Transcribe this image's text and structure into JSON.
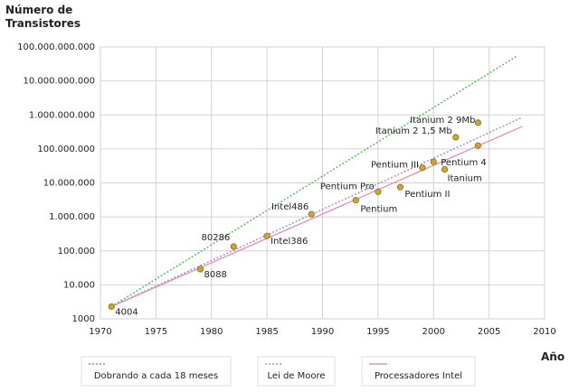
{
  "chart_data": {
    "type": "scatter",
    "ylabel": "Número de Transistores",
    "xlabel": "Año",
    "yscale": "log",
    "grid": true,
    "xlim": [
      1970,
      2010
    ],
    "xticks": [
      1970,
      1975,
      1980,
      1985,
      1990,
      1995,
      2000,
      2005,
      2010
    ],
    "ylim": [
      1000,
      100000000000
    ],
    "yticks": [
      1000,
      {
        "value": 10000,
        "label": "10.000"
      },
      {
        "value": 100000,
        "label": "100.000"
      },
      {
        "value": 1000000,
        "label": "1.000.000"
      },
      {
        "value": 10000000,
        "label": "10.000.000"
      },
      {
        "value": 100000000,
        "label": "100.000.000"
      },
      {
        "value": 1000000000,
        "label": "1.000.000.000"
      },
      {
        "value": 10000000000,
        "label": "10.000.000.000"
      },
      {
        "value": 100000000000,
        "label": "100.000.000.000"
      }
    ],
    "points": {
      "color": "#c9a53a",
      "x": [
        1971,
        1979,
        1982,
        1985,
        1989,
        1993,
        1995,
        1997,
        1999,
        2000,
        2001,
        2002,
        2004,
        2004
      ],
      "values": [
        2300,
        29000,
        134000,
        275000,
        1200000,
        3100000,
        5500000,
        7500000,
        28000000,
        42000000,
        25000000,
        220000000,
        592000000,
        125000000
      ],
      "labels": [
        "4004",
        "8088",
        "80286",
        "Intel386",
        "Intel486",
        "Pentium",
        "Pentium Pro",
        "Pentium II",
        "Pentium III",
        "Pentium 4",
        "Itanium",
        "Itanium 2 1,5 Mb",
        "Itanium 2 9Mb",
        null
      ]
    },
    "series": [
      {
        "name": "Dobrando a cada 18 meses",
        "color": "#5cb85c",
        "style": "dotted",
        "x": [
          1971,
          2007.5
        ],
        "values": [
          2300,
          54000000000
        ]
      },
      {
        "name": "Lei de Moore",
        "color": "#a98bd6",
        "style": "dotted",
        "x": [
          1971,
          2008
        ],
        "values": [
          2300,
          850000000
        ]
      },
      {
        "name": "Processadores Intel",
        "color": "#e58fb0",
        "style": "solid",
        "x": [
          1971,
          2008
        ],
        "values": [
          2300,
          460000000
        ]
      }
    ]
  }
}
